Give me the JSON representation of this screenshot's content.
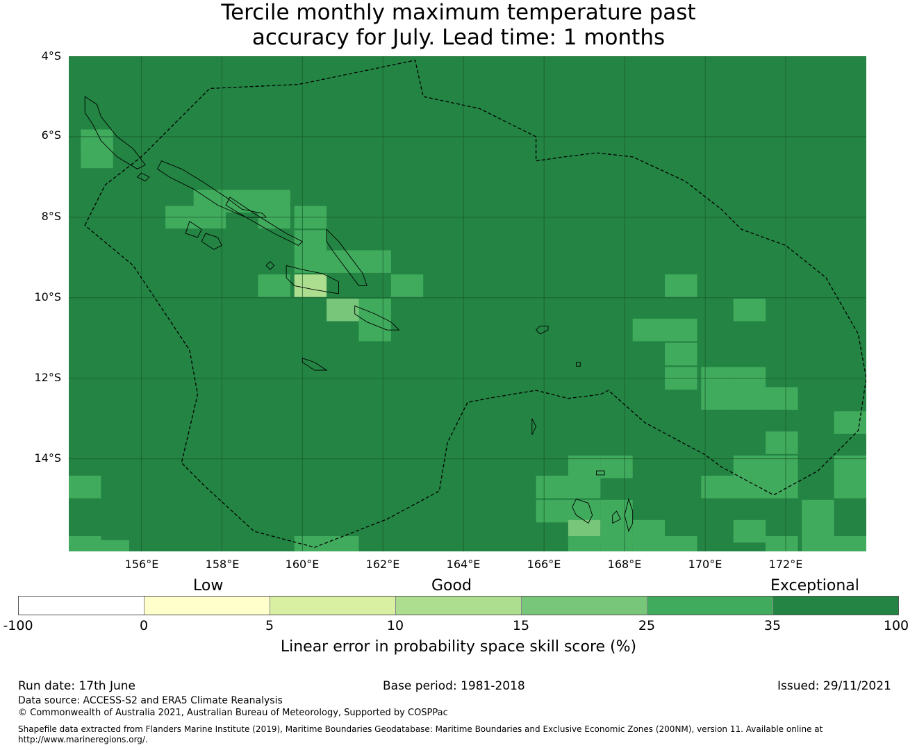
{
  "title": {
    "line1": "Tercile monthly maximum temperature past",
    "line2": "accuracy for July. Lead time: 1 months"
  },
  "map": {
    "extent": {
      "lon_min": 154.2,
      "lon_max": 174.0,
      "lat_max": -4.0,
      "lat_min": -16.3
    },
    "lat_ticks": [
      {
        "value": -4,
        "label": "4°S"
      },
      {
        "value": -6,
        "label": "6°S"
      },
      {
        "value": -8,
        "label": "8°S"
      },
      {
        "value": -10,
        "label": "10°S"
      },
      {
        "value": -12,
        "label": "12°S"
      },
      {
        "value": -14,
        "label": "14°S"
      }
    ],
    "lon_ticks": [
      {
        "value": 156,
        "label": "156°E"
      },
      {
        "value": 158,
        "label": "158°E"
      },
      {
        "value": 160,
        "label": "160°E"
      },
      {
        "value": 162,
        "label": "162°E"
      },
      {
        "value": 164,
        "label": "164°E"
      },
      {
        "value": 166,
        "label": "166°E"
      },
      {
        "value": 168,
        "label": "168°E"
      },
      {
        "value": 170,
        "label": "170°E"
      },
      {
        "value": 172,
        "label": "172°E"
      }
    ],
    "background_class": "35-100",
    "cells": [
      {
        "lon": 154.9,
        "lat": -6.1,
        "class": "25-35"
      },
      {
        "lon": 154.9,
        "lat": -6.5,
        "class": "25-35"
      },
      {
        "lon": 157.7,
        "lat": -7.6,
        "class": "25-35"
      },
      {
        "lon": 158.5,
        "lat": -7.6,
        "class": "25-35"
      },
      {
        "lon": 159.3,
        "lat": -7.6,
        "class": "25-35"
      },
      {
        "lon": 157.0,
        "lat": -8.0,
        "class": "25-35"
      },
      {
        "lon": 157.7,
        "lat": -8.0,
        "class": "25-35"
      },
      {
        "lon": 159.3,
        "lat": -8.0,
        "class": "25-35"
      },
      {
        "lon": 160.2,
        "lat": -8.0,
        "class": "25-35"
      },
      {
        "lon": 160.2,
        "lat": -8.6,
        "class": "25-35"
      },
      {
        "lon": 160.2,
        "lat": -9.1,
        "class": "25-35"
      },
      {
        "lon": 161.0,
        "lat": -9.1,
        "class": "25-35"
      },
      {
        "lon": 161.8,
        "lat": -9.1,
        "class": "25-35"
      },
      {
        "lon": 159.3,
        "lat": -9.7,
        "class": "25-35"
      },
      {
        "lon": 160.2,
        "lat": -9.7,
        "class": "10-15"
      },
      {
        "lon": 162.6,
        "lat": -9.7,
        "class": "25-35"
      },
      {
        "lon": 161.0,
        "lat": -10.3,
        "class": "15-25"
      },
      {
        "lon": 161.8,
        "lat": -10.3,
        "class": "25-35"
      },
      {
        "lon": 161.8,
        "lat": -10.8,
        "class": "25-35"
      },
      {
        "lon": 169.4,
        "lat": -9.7,
        "class": "25-35"
      },
      {
        "lon": 171.1,
        "lat": -10.3,
        "class": "25-35"
      },
      {
        "lon": 168.6,
        "lat": -10.8,
        "class": "25-35"
      },
      {
        "lon": 169.4,
        "lat": -10.8,
        "class": "25-35"
      },
      {
        "lon": 169.4,
        "lat": -11.4,
        "class": "25-35"
      },
      {
        "lon": 169.4,
        "lat": -12.0,
        "class": "25-35"
      },
      {
        "lon": 170.3,
        "lat": -12.0,
        "class": "25-35"
      },
      {
        "lon": 171.1,
        "lat": -12.0,
        "class": "25-35"
      },
      {
        "lon": 170.3,
        "lat": -12.5,
        "class": "25-35"
      },
      {
        "lon": 171.1,
        "lat": -12.5,
        "class": "25-35"
      },
      {
        "lon": 171.9,
        "lat": -12.5,
        "class": "25-35"
      },
      {
        "lon": 173.6,
        "lat": -13.1,
        "class": "25-35"
      },
      {
        "lon": 171.9,
        "lat": -13.6,
        "class": "25-35"
      },
      {
        "lon": 167.0,
        "lat": -14.2,
        "class": "25-35"
      },
      {
        "lon": 167.8,
        "lat": -14.2,
        "class": "25-35"
      },
      {
        "lon": 171.1,
        "lat": -14.2,
        "class": "25-35"
      },
      {
        "lon": 171.9,
        "lat": -14.2,
        "class": "25-35"
      },
      {
        "lon": 173.6,
        "lat": -14.2,
        "class": "25-35"
      },
      {
        "lon": 154.6,
        "lat": -14.7,
        "class": "25-35"
      },
      {
        "lon": 166.2,
        "lat": -14.7,
        "class": "25-35"
      },
      {
        "lon": 167.0,
        "lat": -14.7,
        "class": "25-35"
      },
      {
        "lon": 170.3,
        "lat": -14.7,
        "class": "25-35"
      },
      {
        "lon": 171.1,
        "lat": -14.7,
        "class": "25-35"
      },
      {
        "lon": 171.9,
        "lat": -14.7,
        "class": "25-35"
      },
      {
        "lon": 173.6,
        "lat": -14.7,
        "class": "25-35"
      },
      {
        "lon": 166.2,
        "lat": -15.3,
        "class": "25-35"
      },
      {
        "lon": 167.0,
        "lat": -15.3,
        "class": "25-35"
      },
      {
        "lon": 167.8,
        "lat": -15.3,
        "class": "25-35"
      },
      {
        "lon": 172.8,
        "lat": -15.3,
        "class": "25-35"
      },
      {
        "lon": 167.0,
        "lat": -15.8,
        "class": "15-25"
      },
      {
        "lon": 167.8,
        "lat": -15.8,
        "class": "25-35"
      },
      {
        "lon": 168.6,
        "lat": -15.8,
        "class": "25-35"
      },
      {
        "lon": 171.1,
        "lat": -15.8,
        "class": "25-35"
      },
      {
        "lon": 172.8,
        "lat": -15.8,
        "class": "25-35"
      },
      {
        "lon": 154.6,
        "lat": -16.2,
        "class": "25-35"
      },
      {
        "lon": 155.3,
        "lat": -16.3,
        "class": "25-35"
      },
      {
        "lon": 160.2,
        "lat": -16.2,
        "class": "25-35"
      },
      {
        "lon": 161.0,
        "lat": -16.2,
        "class": "25-35"
      },
      {
        "lon": 167.0,
        "lat": -16.2,
        "class": "25-35"
      },
      {
        "lon": 167.8,
        "lat": -16.2,
        "class": "25-35"
      },
      {
        "lon": 168.6,
        "lat": -16.2,
        "class": "25-35"
      },
      {
        "lon": 169.4,
        "lat": -16.2,
        "class": "25-35"
      },
      {
        "lon": 171.9,
        "lat": -16.2,
        "class": "25-35"
      },
      {
        "lon": 172.8,
        "lat": -16.2,
        "class": "25-35"
      },
      {
        "lon": 173.6,
        "lat": -16.2,
        "class": "25-35"
      }
    ],
    "eez_boundary": [
      [
        154.6,
        -8.2
      ],
      [
        155.1,
        -7.2
      ],
      [
        156.0,
        -6.5
      ],
      [
        156.3,
        -6.2
      ],
      [
        157.7,
        -4.8
      ],
      [
        159.9,
        -4.7
      ],
      [
        162.8,
        -4.1
      ],
      [
        163.0,
        -5.0
      ],
      [
        164.4,
        -5.3
      ],
      [
        165.8,
        -6.0
      ],
      [
        165.8,
        -6.6
      ],
      [
        166.5,
        -6.5
      ],
      [
        167.3,
        -6.4
      ],
      [
        168.2,
        -6.5
      ],
      [
        169.5,
        -7.1
      ],
      [
        170.4,
        -7.8
      ],
      [
        170.9,
        -8.3
      ],
      [
        172.0,
        -8.7
      ],
      [
        173.0,
        -9.5
      ],
      [
        173.8,
        -10.9
      ],
      [
        174.0,
        -12.0
      ],
      [
        173.8,
        -13.3
      ],
      [
        172.8,
        -14.3
      ],
      [
        171.7,
        -14.9
      ],
      [
        170.4,
        -14.2
      ],
      [
        170.0,
        -13.9
      ],
      [
        168.5,
        -13.1
      ],
      [
        167.6,
        -12.3
      ],
      [
        167.4,
        -12.4
      ],
      [
        166.6,
        -12.5
      ],
      [
        165.8,
        -12.3
      ],
      [
        164.6,
        -12.5
      ],
      [
        164.1,
        -12.6
      ],
      [
        163.6,
        -13.6
      ],
      [
        163.4,
        -14.8
      ],
      [
        162.1,
        -15.5
      ],
      [
        160.3,
        -16.2
      ],
      [
        158.8,
        -15.8
      ],
      [
        157.6,
        -14.7
      ],
      [
        157.0,
        -14.1
      ],
      [
        157.4,
        -12.4
      ],
      [
        157.2,
        -11.3
      ],
      [
        156.6,
        -10.4
      ],
      [
        155.8,
        -9.2
      ],
      [
        154.6,
        -8.2
      ]
    ],
    "islands": [
      [
        [
          154.6,
          -5.0
        ],
        [
          154.9,
          -5.2
        ],
        [
          155.0,
          -5.5
        ],
        [
          155.4,
          -6.0
        ],
        [
          155.8,
          -6.3
        ],
        [
          156.1,
          -6.7
        ],
        [
          155.9,
          -6.8
        ],
        [
          155.4,
          -6.5
        ],
        [
          155.0,
          -6.1
        ],
        [
          154.8,
          -5.7
        ],
        [
          154.6,
          -5.4
        ]
      ],
      [
        [
          156.5,
          -6.6
        ],
        [
          157.0,
          -6.8
        ],
        [
          157.5,
          -7.1
        ],
        [
          158.1,
          -7.5
        ],
        [
          158.5,
          -7.8
        ],
        [
          159.0,
          -7.9
        ],
        [
          159.1,
          -8.0
        ],
        [
          158.6,
          -8.0
        ],
        [
          157.9,
          -7.7
        ],
        [
          157.3,
          -7.3
        ],
        [
          156.7,
          -7.0
        ],
        [
          156.4,
          -6.8
        ]
      ],
      [
        [
          158.2,
          -7.5
        ],
        [
          158.8,
          -7.9
        ],
        [
          159.6,
          -8.4
        ],
        [
          160.0,
          -8.6
        ],
        [
          159.9,
          -8.7
        ],
        [
          159.3,
          -8.4
        ],
        [
          158.6,
          -8.0
        ],
        [
          158.1,
          -7.7
        ]
      ],
      [
        [
          160.6,
          -8.3
        ],
        [
          160.9,
          -8.6
        ],
        [
          161.2,
          -9.0
        ],
        [
          161.5,
          -9.4
        ],
        [
          161.6,
          -9.7
        ],
        [
          161.4,
          -9.7
        ],
        [
          161.1,
          -9.3
        ],
        [
          160.8,
          -8.9
        ],
        [
          160.6,
          -8.6
        ]
      ],
      [
        [
          159.6,
          -9.2
        ],
        [
          160.0,
          -9.3
        ],
        [
          160.5,
          -9.4
        ],
        [
          160.9,
          -9.6
        ],
        [
          160.9,
          -9.9
        ],
        [
          160.3,
          -9.8
        ],
        [
          159.8,
          -9.7
        ],
        [
          159.6,
          -9.5
        ]
      ],
      [
        [
          161.3,
          -10.2
        ],
        [
          161.8,
          -10.4
        ],
        [
          162.2,
          -10.6
        ],
        [
          162.4,
          -10.8
        ],
        [
          162.1,
          -10.8
        ],
        [
          161.6,
          -10.6
        ],
        [
          161.3,
          -10.4
        ]
      ],
      [
        [
          157.2,
          -8.1
        ],
        [
          157.5,
          -8.3
        ],
        [
          157.4,
          -8.5
        ],
        [
          157.1,
          -8.4
        ]
      ],
      [
        [
          157.6,
          -8.4
        ],
        [
          157.9,
          -8.5
        ],
        [
          158.0,
          -8.7
        ],
        [
          157.8,
          -8.8
        ],
        [
          157.5,
          -8.6
        ]
      ],
      [
        [
          160.0,
          -11.5
        ],
        [
          160.3,
          -11.6
        ],
        [
          160.6,
          -11.8
        ],
        [
          160.3,
          -11.8
        ],
        [
          160.0,
          -11.6
        ]
      ],
      [
        [
          166.8,
          -15.0
        ],
        [
          167.1,
          -15.1
        ],
        [
          167.2,
          -15.4
        ],
        [
          167.1,
          -15.6
        ],
        [
          166.8,
          -15.4
        ],
        [
          166.7,
          -15.2
        ]
      ],
      [
        [
          168.1,
          -15.0
        ],
        [
          168.2,
          -15.3
        ],
        [
          168.2,
          -15.6
        ],
        [
          168.1,
          -15.8
        ],
        [
          168.0,
          -15.4
        ]
      ],
      [
        [
          165.9,
          -10.7
        ],
        [
          166.1,
          -10.7
        ],
        [
          166.1,
          -10.8
        ],
        [
          165.9,
          -10.9
        ],
        [
          165.8,
          -10.8
        ]
      ],
      [
        [
          167.3,
          -14.3
        ],
        [
          167.5,
          -14.3
        ],
        [
          167.5,
          -14.4
        ],
        [
          167.3,
          -14.4
        ]
      ],
      [
        [
          167.7,
          -15.4
        ],
        [
          167.8,
          -15.3
        ],
        [
          167.9,
          -15.5
        ],
        [
          167.7,
          -15.6
        ]
      ],
      [
        [
          159.1,
          -9.2
        ],
        [
          159.2,
          -9.1
        ],
        [
          159.3,
          -9.2
        ],
        [
          159.2,
          -9.3
        ]
      ],
      [
        [
          166.8,
          -11.6
        ],
        [
          166.9,
          -11.6
        ],
        [
          166.9,
          -11.7
        ],
        [
          166.8,
          -11.7
        ]
      ],
      [
        [
          156.0,
          -6.9
        ],
        [
          156.2,
          -7.0
        ],
        [
          156.1,
          -7.1
        ],
        [
          155.9,
          -7.0
        ]
      ],
      [
        [
          165.7,
          -13.0
        ],
        [
          165.8,
          -13.2
        ],
        [
          165.7,
          -13.4
        ]
      ]
    ]
  },
  "legend": {
    "categories": [
      "Low",
      "Good",
      "Exceptional"
    ],
    "classes": [
      {
        "id": "-100-0",
        "color": "#ffffff"
      },
      {
        "id": "0-5",
        "color": "#ffffcc"
      },
      {
        "id": "5-10",
        "color": "#d9f0a3"
      },
      {
        "id": "10-15",
        "color": "#addd8e"
      },
      {
        "id": "15-25",
        "color": "#78c679"
      },
      {
        "id": "25-35",
        "color": "#41ab5d"
      },
      {
        "id": "35-100",
        "color": "#238443"
      }
    ],
    "ticks": [
      "-100",
      "0",
      "5",
      "10",
      "15",
      "25",
      "35",
      "100"
    ],
    "label": "Linear error in probability space skill score (%)"
  },
  "footer": {
    "run_date": "Run date: 17th June",
    "base_period": "Base period: 1981-2018",
    "issued": "Issued: 29/11/2021",
    "data_source": "Data source: ACCESS-S2 and ERA5 Climate Reanalysis",
    "copyright": "© Commonwealth of Australia 2021, Australian Bureau of Meteorology, Supported by COSPPac",
    "shapefile": "Shapefile data extracted from Flanders Marine Institute (2019), Maritime Boundaries Geodatabase: Maritime Boundaries and Exclusive Economic Zones (200NM), version 11. Available online at http://www.marineregions.org/."
  }
}
